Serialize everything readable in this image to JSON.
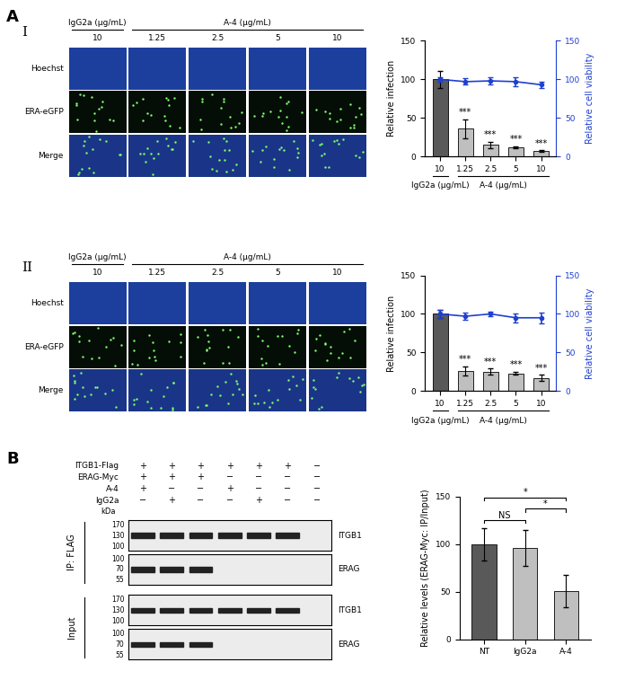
{
  "chart_data": [
    {
      "type": "bar",
      "categories": [
        "10",
        "1.25",
        "2.5",
        "5",
        "10"
      ],
      "groups": [
        {
          "label": "IgG2a (µg/mL)",
          "count": 1
        },
        {
          "label": "A-4 (µg/mL)",
          "count": 4
        }
      ],
      "y_label": "Relative infection",
      "y2_label": "Relative cell viability",
      "ylim": [
        0,
        150
      ],
      "yticks": [
        0,
        50,
        100,
        150
      ],
      "y2lim": [
        0,
        150
      ],
      "y2ticks": [
        0,
        50,
        100,
        150
      ],
      "series": [
        {
          "type": "bar",
          "colors": [
            "#595959",
            "#bfbfbf",
            "#bfbfbf",
            "#bfbfbf",
            "#bfbfbf"
          ],
          "values": [
            100,
            36,
            15,
            12,
            7
          ],
          "errors": [
            11,
            12,
            4,
            1,
            1
          ]
        },
        {
          "type": "line",
          "axis": "y2",
          "color": "#1f3fd0",
          "marker": "o",
          "values": [
            100,
            97,
            98,
            97,
            93
          ],
          "errors": [
            3,
            4,
            5,
            6,
            4
          ]
        }
      ],
      "annotations": [
        null,
        "***",
        "***",
        "***",
        "***"
      ]
    },
    {
      "type": "bar",
      "categories": [
        "10",
        "1.25",
        "2.5",
        "5",
        "10"
      ],
      "groups": [
        {
          "label": "IgG2a (µg/mL)",
          "count": 1
        },
        {
          "label": "A-4 (µg/mL)",
          "count": 4
        }
      ],
      "y_label": "Relative infection",
      "y2_label": "Relative cell viability",
      "ylim": [
        0,
        150
      ],
      "yticks": [
        0,
        50,
        100,
        150
      ],
      "y2lim": [
        0,
        150
      ],
      "y2ticks": [
        0,
        50,
        100,
        150
      ],
      "series": [
        {
          "type": "bar",
          "colors": [
            "#595959",
            "#bfbfbf",
            "#bfbfbf",
            "#bfbfbf",
            "#bfbfbf"
          ],
          "values": [
            100,
            26,
            25,
            23,
            17
          ],
          "errors": [
            5,
            6,
            4,
            2,
            4
          ]
        },
        {
          "type": "line",
          "axis": "y2",
          "color": "#1f3fd0",
          "marker": "o",
          "values": [
            100,
            97,
            100,
            95,
            95
          ],
          "errors": [
            5,
            5,
            3,
            6,
            7
          ]
        }
      ],
      "annotations": [
        null,
        "***",
        "***",
        "***",
        "***"
      ]
    },
    {
      "type": "bar",
      "categories": [
        "NT",
        "IgG2a",
        "A-4"
      ],
      "y_label": "Relative levels (ERAG-Myc: IP/Input)",
      "ylim": [
        0,
        150
      ],
      "yticks": [
        0,
        50,
        100,
        150
      ],
      "series": [
        {
          "type": "bar",
          "colors": [
            "#595959",
            "#bfbfbf",
            "#bfbfbf"
          ],
          "values": [
            100,
            96,
            51
          ],
          "errors": [
            17,
            19,
            17
          ]
        }
      ],
      "comparisons": [
        {
          "pair": [
            "NT",
            "IgG2a"
          ],
          "text": "NS"
        },
        {
          "pair": [
            "IgG2a",
            "A-4"
          ],
          "text": "*"
        },
        {
          "pair": [
            "NT",
            "A-4"
          ],
          "text": "*"
        }
      ]
    }
  ],
  "image_panels": {
    "label": "A",
    "rows": [
      {
        "label": "I",
        "channels": [
          "Hoechst",
          "ERA-eGFP",
          "Merge"
        ],
        "groups": [
          {
            "label": "IgG2a (µg/mL)",
            "count": 1
          },
          {
            "label": "A-4 (µg/mL)",
            "count": 4
          }
        ],
        "doses": [
          "10",
          "1.25",
          "2.5",
          "5",
          "10"
        ]
      },
      {
        "label": "II",
        "channels": [
          "Hoechst",
          "ERA-eGFP",
          "Merge"
        ],
        "groups": [
          {
            "label": "IgG2a (µg/mL)",
            "count": 1
          },
          {
            "label": "A-4 (µg/mL)",
            "count": 4
          }
        ],
        "doses": [
          "10",
          "1.25",
          "2.5",
          "5",
          "10"
        ]
      }
    ]
  },
  "blot_panel": {
    "label": "B",
    "conditions": [
      {
        "label": "ITGB1-Flag",
        "marks": [
          "+",
          "+",
          "+",
          "+",
          "+",
          "+",
          "−"
        ]
      },
      {
        "label": "ERAG-Myc",
        "marks": [
          "+",
          "+",
          "+",
          "−",
          "−",
          "−",
          "−"
        ]
      },
      {
        "label": "A-4",
        "marks": [
          "+",
          "−",
          "−",
          "+",
          "−",
          "−",
          "−"
        ]
      },
      {
        "label": "IgG2a",
        "marks": [
          "−",
          "+",
          "−",
          "−",
          "+",
          "−",
          "−"
        ]
      }
    ],
    "kda_label": "kDa",
    "blot_groups": [
      {
        "label": "IP: FLAG",
        "blots": [
          {
            "target": "ITGB1",
            "markers": [
              170,
              130,
              100
            ]
          },
          {
            "target": "ERAG",
            "markers": [
              100,
              70,
              55
            ]
          }
        ]
      },
      {
        "label": "Input",
        "blots": [
          {
            "target": "ITGB1",
            "markers": [
              170,
              130,
              100
            ]
          },
          {
            "target": "ERAG",
            "markers": [
              100,
              70,
              55
            ]
          }
        ]
      }
    ]
  }
}
